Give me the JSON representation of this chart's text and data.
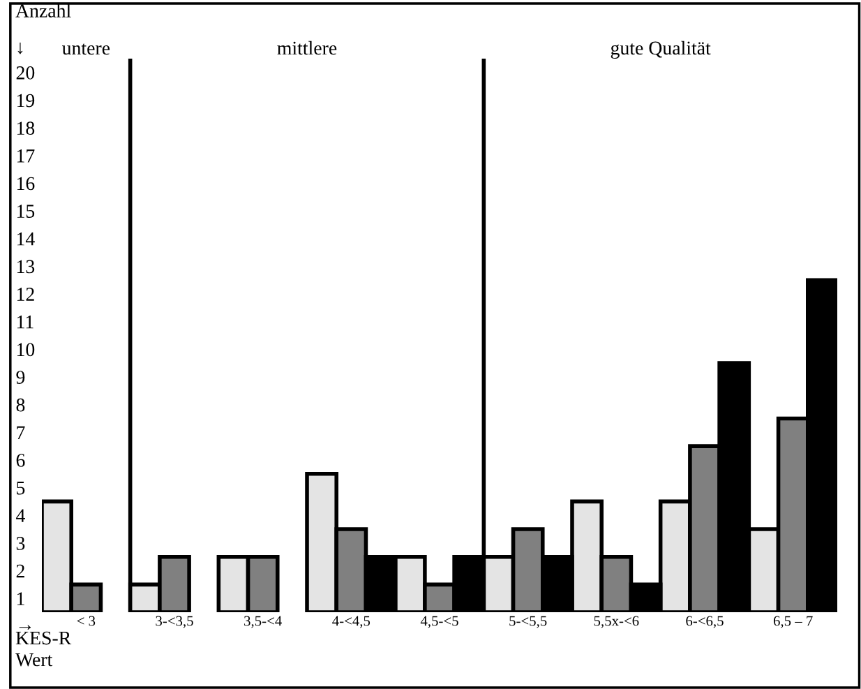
{
  "chart_data": {
    "type": "bar",
    "ylabel": "Anzahl",
    "xlabel": "KES-R\nWert",
    "categories": [
      "< 3",
      "3-<3,5",
      "3,5-<4",
      "4-<4,5",
      "4,5-<5",
      "5-<5,5",
      "5,5x-<6",
      "6-<6,5",
      "6,5 – 7"
    ],
    "series": [
      {
        "color": "#e4e4e4",
        "values": [
          4.5,
          1.5,
          2.5,
          5.5,
          2.5,
          2.5,
          4.5,
          4.5,
          3.5
        ]
      },
      {
        "color": "#808080",
        "values": [
          1.5,
          2.5,
          2.5,
          3.5,
          1.5,
          3.5,
          2.5,
          6.5,
          7.5
        ]
      },
      {
        "color": "#000000",
        "values": [
          null,
          null,
          null,
          2.5,
          2.5,
          2.5,
          1.5,
          9.5,
          12.5
        ]
      }
    ],
    "ylim": [
      0.5,
      20.5
    ],
    "yticks": [
      1,
      2,
      3,
      4,
      5,
      6,
      7,
      8,
      9,
      10,
      11,
      12,
      13,
      14,
      15,
      16,
      17,
      18,
      19,
      20
    ],
    "annotations": [
      "↓",
      "→",
      "untere",
      "mittlere",
      "gute Qualität"
    ],
    "grid": false,
    "legend": false
  }
}
